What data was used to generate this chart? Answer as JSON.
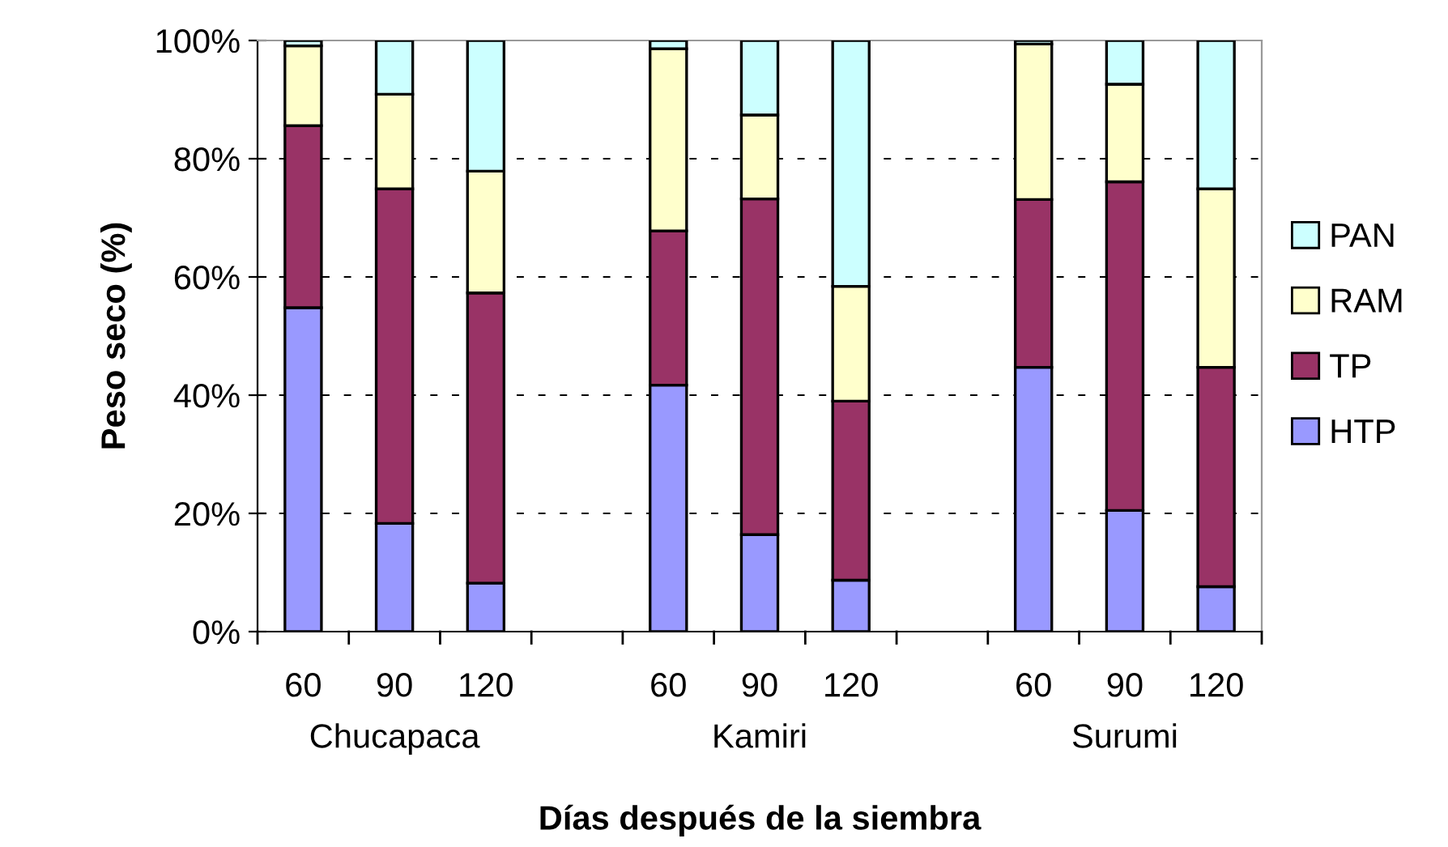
{
  "chart_data": {
    "type": "bar",
    "stacked": true,
    "xlabel": "Días después de la siembra",
    "ylabel": "Peso seco (%)",
    "categories": [
      "60",
      "90",
      "120",
      null,
      "60",
      "90",
      "120",
      null,
      "60",
      "90",
      "120"
    ],
    "series": [
      {
        "name": "HTP",
        "color": "#9999ff",
        "values": [
          54.8,
          18.3,
          8.2,
          null,
          41.7,
          16.4,
          8.7,
          null,
          44.7,
          20.5,
          7.6
        ]
      },
      {
        "name": "TP",
        "color": "#993366",
        "values": [
          30.8,
          56.6,
          49.1,
          null,
          26.1,
          56.8,
          30.3,
          null,
          28.4,
          55.6,
          37.1
        ]
      },
      {
        "name": "RAM",
        "color": "#ffffcc",
        "values": [
          13.5,
          16.0,
          20.6,
          null,
          30.8,
          14.2,
          19.4,
          null,
          26.3,
          16.5,
          30.2
        ]
      },
      {
        "name": "PAN",
        "color": "#ccffff",
        "values": [
          0.9,
          9.1,
          22.1,
          null,
          1.4,
          12.6,
          41.6,
          null,
          0.6,
          7.4,
          25.1
        ]
      }
    ],
    "ylim": [
      0,
      100
    ],
    "yticks": [
      {
        "value": 0,
        "label": "0%"
      },
      {
        "value": 20,
        "label": "20%"
      },
      {
        "value": 40,
        "label": "40%"
      },
      {
        "value": 60,
        "label": "60%"
      },
      {
        "value": 80,
        "label": "80%"
      },
      {
        "value": 100,
        "label": "100%"
      }
    ],
    "grid": "y",
    "legend": "right",
    "line_style": "dashed",
    "annotations": [
      "Chucapaca",
      "Kamiri",
      "Surumi"
    ]
  }
}
